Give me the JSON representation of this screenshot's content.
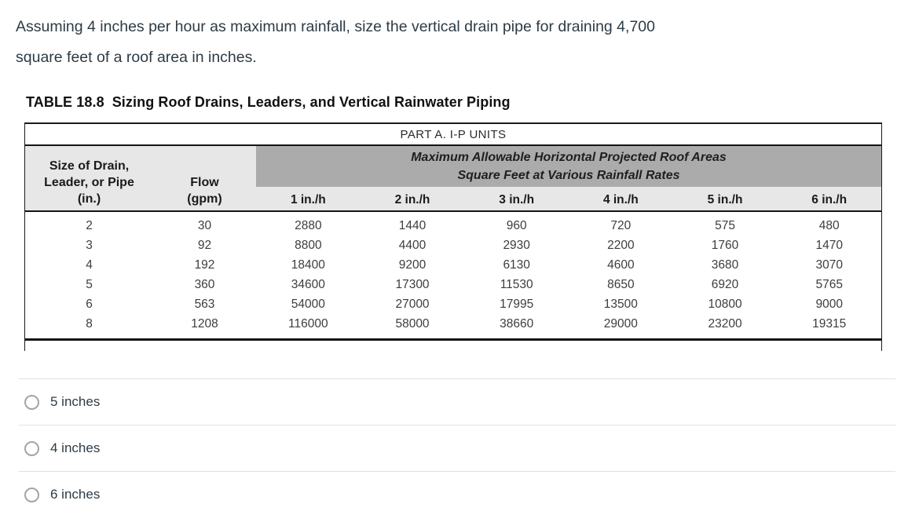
{
  "question": {
    "line1": "Assuming 4 inches per hour as maximum rainfall, size the vertical drain pipe for draining 4,700",
    "line2": "square feet of a roof area in inches."
  },
  "table": {
    "title_label": "TABLE 18.8",
    "title_text": "Sizing Roof Drains, Leaders, and Vertical Rainwater Piping",
    "part_header": "PART A. I-P UNITS",
    "col_size_line1": "Size of Drain,",
    "col_size_line2": "Leader, or Pipe",
    "col_size_line3": "(in.)",
    "col_flow_line1": "Flow",
    "col_flow_line2": "(gpm)",
    "span_header_line1": "Maximum Allowable Horizontal Projected Roof Areas",
    "span_header_line2": "Square Feet at Various Rainfall Rates",
    "rate_headers": [
      "1 in./h",
      "2 in./h",
      "3 in./h",
      "4 in./h",
      "5 in./h",
      "6 in./h"
    ],
    "rows": [
      {
        "cells": [
          "2",
          "30",
          "2880",
          "1440",
          "960",
          "720",
          "575",
          "480"
        ]
      },
      {
        "cells": [
          "3",
          "92",
          "8800",
          "4400",
          "2930",
          "2200",
          "1760",
          "1470"
        ]
      },
      {
        "cells": [
          "4",
          "192",
          "18400",
          "9200",
          "6130",
          "4600",
          "3680",
          "3070"
        ]
      },
      {
        "cells": [
          "5",
          "360",
          "34600",
          "17300",
          "11530",
          "8650",
          "6920",
          "5765"
        ]
      },
      {
        "cells": [
          "6",
          "563",
          "54000",
          "27000",
          "17995",
          "13500",
          "10800",
          "9000"
        ]
      },
      {
        "cells": [
          "8",
          "1208",
          "116000",
          "58000",
          "38660",
          "29000",
          "23200",
          "19315"
        ]
      }
    ]
  },
  "options": [
    {
      "label": "5 inches"
    },
    {
      "label": "4 inches"
    },
    {
      "label": "6 inches"
    }
  ],
  "colors": {
    "question_text": "#2d3b45",
    "header_band_dark": "#ababab",
    "header_band_light": "#e7e7e7",
    "table_border": "#1a1a1a",
    "option_divider": "#dfe1e3",
    "radio_border": "#a0a5ab"
  }
}
